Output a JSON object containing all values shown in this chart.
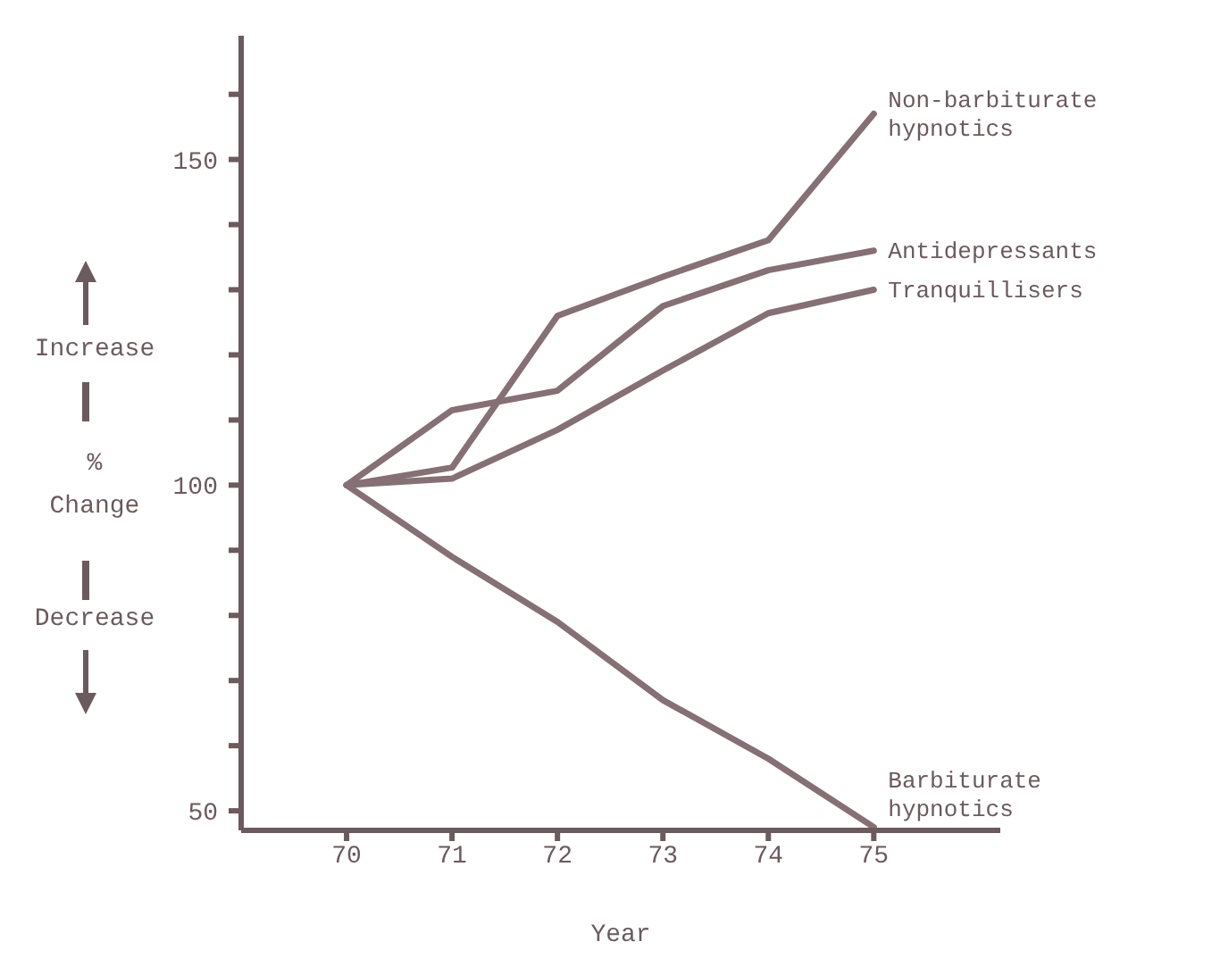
{
  "chart_data": {
    "type": "line",
    "xlabel": "Year",
    "ylabel": "% Change",
    "annotations": [
      "Increase",
      "Decrease"
    ],
    "x": [
      70,
      71,
      72,
      73,
      74,
      75
    ],
    "xlim": [
      69,
      76.2
    ],
    "xticks": [
      70,
      71,
      72,
      73,
      74,
      75
    ],
    "ylim": [
      47,
      169
    ],
    "yticks": [
      {
        "value": 50,
        "label": "50"
      },
      {
        "value": 60,
        "label": null
      },
      {
        "value": 70,
        "label": null
      },
      {
        "value": 80,
        "label": null
      },
      {
        "value": 90,
        "label": null
      },
      {
        "value": 100,
        "label": "100"
      },
      {
        "value": 110,
        "label": null
      },
      {
        "value": 120,
        "label": null
      },
      {
        "value": 130,
        "label": null
      },
      {
        "value": 140,
        "label": null
      },
      {
        "value": 150,
        "label": "150"
      },
      {
        "value": 160,
        "label": null
      }
    ],
    "marker": "none",
    "line_style": "solid",
    "series": [
      {
        "name": "Non-barbiturate hypnotics",
        "color": "#857076",
        "values": [
          100,
          102.7,
          126,
          132,
          137.6,
          157
        ]
      },
      {
        "name": "Antidepressants",
        "color": "#857076",
        "values": [
          100,
          111.5,
          114.5,
          127.5,
          133,
          136
        ]
      },
      {
        "name": "Tranquillisers",
        "color": "#857076",
        "values": [
          100,
          101,
          108.5,
          117.6,
          126.4,
          130
        ]
      },
      {
        "name": "Barbiturate hypnotics",
        "color": "#857076",
        "values": [
          100,
          89,
          79,
          67,
          58,
          47.5
        ]
      }
    ]
  }
}
